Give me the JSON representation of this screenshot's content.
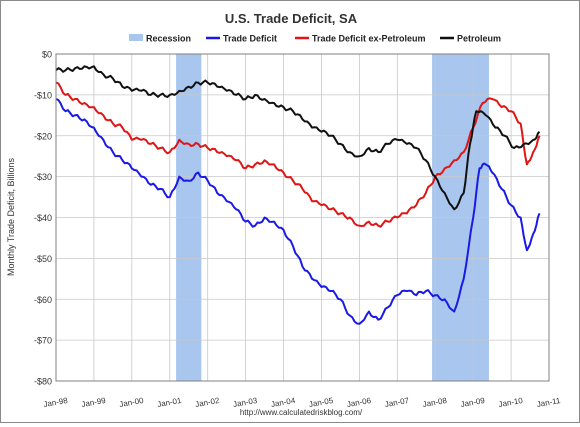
{
  "chart_data": {
    "type": "line",
    "title": "U.S. Trade Deficit, SA",
    "ylabel": "Monthly Trade Deficit, Billions",
    "xlabel": "",
    "source": "http://www.calculatedriskblog.com/",
    "ylim": [
      -80,
      0
    ],
    "xlim": [
      "1998-01",
      "2011-01"
    ],
    "grid": true,
    "legend_position": "top",
    "y_ticks": [
      {
        "value": 0,
        "label": "$0"
      },
      {
        "value": -10,
        "label": "-$10"
      },
      {
        "value": -20,
        "label": "-$20"
      },
      {
        "value": -30,
        "label": "-$30"
      },
      {
        "value": -40,
        "label": "-$40"
      },
      {
        "value": -50,
        "label": "-$50"
      },
      {
        "value": -60,
        "label": "-$60"
      },
      {
        "value": -70,
        "label": "-$70"
      },
      {
        "value": -80,
        "label": "-$80"
      }
    ],
    "x_ticks": [
      {
        "date": "1998-01",
        "label": "Jan-98"
      },
      {
        "date": "1999-01",
        "label": "Jan-99"
      },
      {
        "date": "2000-01",
        "label": "Jan-00"
      },
      {
        "date": "2001-01",
        "label": "Jan-01"
      },
      {
        "date": "2002-01",
        "label": "Jan-02"
      },
      {
        "date": "2003-01",
        "label": "Jan-03"
      },
      {
        "date": "2004-01",
        "label": "Jan-04"
      },
      {
        "date": "2005-01",
        "label": "Jan-05"
      },
      {
        "date": "2006-01",
        "label": "Jan-06"
      },
      {
        "date": "2007-01",
        "label": "Jan-07"
      },
      {
        "date": "2008-01",
        "label": "Jan-08"
      },
      {
        "date": "2009-01",
        "label": "Jan-09"
      },
      {
        "date": "2010-01",
        "label": "Jan-10"
      },
      {
        "date": "2011-01",
        "label": "Jan-11"
      }
    ],
    "recessions": [
      {
        "start": "2001-03",
        "end": "2001-11"
      },
      {
        "start": "2007-12",
        "end": "2009-06"
      }
    ],
    "recession_legend": {
      "name": "Recession",
      "color": "#a9c6ee"
    },
    "series": [
      {
        "name": "Trade Deficit",
        "color": "#1a1ae6",
        "points": [
          [
            "1998-01",
            -11
          ],
          [
            "1998-04",
            -14
          ],
          [
            "1998-07",
            -15
          ],
          [
            "1998-10",
            -16
          ],
          [
            "1999-01",
            -18
          ],
          [
            "1999-04",
            -21
          ],
          [
            "1999-07",
            -24
          ],
          [
            "1999-10",
            -26
          ],
          [
            "2000-01",
            -28
          ],
          [
            "2000-04",
            -30
          ],
          [
            "2000-07",
            -32
          ],
          [
            "2000-10",
            -33
          ],
          [
            "2001-01",
            -35
          ],
          [
            "2001-04",
            -30
          ],
          [
            "2001-07",
            -31
          ],
          [
            "2001-10",
            -29
          ],
          [
            "2002-01",
            -31
          ],
          [
            "2002-04",
            -34
          ],
          [
            "2002-07",
            -36
          ],
          [
            "2002-10",
            -38
          ],
          [
            "2003-01",
            -41
          ],
          [
            "2003-04",
            -42
          ],
          [
            "2003-07",
            -40
          ],
          [
            "2003-10",
            -41
          ],
          [
            "2004-01",
            -43
          ],
          [
            "2004-04",
            -47
          ],
          [
            "2004-07",
            -52
          ],
          [
            "2004-10",
            -55
          ],
          [
            "2005-01",
            -57
          ],
          [
            "2005-04",
            -58
          ],
          [
            "2005-07",
            -60
          ],
          [
            "2005-10",
            -64
          ],
          [
            "2006-01",
            -66
          ],
          [
            "2006-04",
            -63
          ],
          [
            "2006-07",
            -65
          ],
          [
            "2006-10",
            -62
          ],
          [
            "2007-01",
            -59
          ],
          [
            "2007-04",
            -58
          ],
          [
            "2007-07",
            -59
          ],
          [
            "2007-10",
            -58
          ],
          [
            "2008-01",
            -59
          ],
          [
            "2008-04",
            -60
          ],
          [
            "2008-07",
            -63
          ],
          [
            "2008-10",
            -55
          ],
          [
            "2009-01",
            -40
          ],
          [
            "2009-03",
            -28
          ],
          [
            "2009-05",
            -27
          ],
          [
            "2009-07",
            -29
          ],
          [
            "2009-10",
            -33
          ],
          [
            "2010-01",
            -37
          ],
          [
            "2010-04",
            -40
          ],
          [
            "2010-06",
            -48
          ],
          [
            "2010-08",
            -44
          ],
          [
            "2010-10",
            -39
          ]
        ]
      },
      {
        "name": "Trade Deficit ex-Petroleum",
        "color": "#e01515",
        "points": [
          [
            "1998-01",
            -7
          ],
          [
            "1998-04",
            -10
          ],
          [
            "1998-07",
            -11
          ],
          [
            "1998-10",
            -12
          ],
          [
            "1999-01",
            -13
          ],
          [
            "1999-04",
            -15
          ],
          [
            "1999-07",
            -17
          ],
          [
            "1999-10",
            -18
          ],
          [
            "2000-01",
            -21
          ],
          [
            "2000-04",
            -21
          ],
          [
            "2000-07",
            -22
          ],
          [
            "2000-10",
            -23
          ],
          [
            "2001-01",
            -24
          ],
          [
            "2001-04",
            -21
          ],
          [
            "2001-07",
            -22
          ],
          [
            "2001-10",
            -22
          ],
          [
            "2002-01",
            -23
          ],
          [
            "2002-04",
            -24
          ],
          [
            "2002-07",
            -25
          ],
          [
            "2002-10",
            -26
          ],
          [
            "2003-01",
            -28
          ],
          [
            "2003-04",
            -27
          ],
          [
            "2003-07",
            -26
          ],
          [
            "2003-10",
            -27
          ],
          [
            "2004-01",
            -29
          ],
          [
            "2004-04",
            -31
          ],
          [
            "2004-07",
            -33
          ],
          [
            "2004-10",
            -36
          ],
          [
            "2005-01",
            -37
          ],
          [
            "2005-04",
            -38
          ],
          [
            "2005-07",
            -39
          ],
          [
            "2005-10",
            -40
          ],
          [
            "2006-01",
            -42
          ],
          [
            "2006-04",
            -41
          ],
          [
            "2006-07",
            -42
          ],
          [
            "2006-10",
            -41
          ],
          [
            "2007-01",
            -40
          ],
          [
            "2007-04",
            -39
          ],
          [
            "2007-07",
            -37
          ],
          [
            "2007-10",
            -34
          ],
          [
            "2008-01",
            -30
          ],
          [
            "2008-04",
            -28
          ],
          [
            "2008-07",
            -26
          ],
          [
            "2008-10",
            -24
          ],
          [
            "2009-01",
            -18
          ],
          [
            "2009-04",
            -12
          ],
          [
            "2009-07",
            -11
          ],
          [
            "2009-10",
            -13
          ],
          [
            "2010-01",
            -14
          ],
          [
            "2010-04",
            -17
          ],
          [
            "2010-06",
            -27
          ],
          [
            "2010-08",
            -24
          ],
          [
            "2010-10",
            -20
          ]
        ]
      },
      {
        "name": "Petroleum",
        "color": "#111111",
        "points": [
          [
            "1998-01",
            -4
          ],
          [
            "1998-04",
            -4
          ],
          [
            "1998-07",
            -3.5
          ],
          [
            "1998-10",
            -3
          ],
          [
            "1999-01",
            -3
          ],
          [
            "1999-04",
            -5
          ],
          [
            "1999-07",
            -6
          ],
          [
            "1999-10",
            -8
          ],
          [
            "2000-01",
            -9
          ],
          [
            "2000-04",
            -9
          ],
          [
            "2000-07",
            -10
          ],
          [
            "2000-10",
            -10
          ],
          [
            "2001-01",
            -10
          ],
          [
            "2001-04",
            -9
          ],
          [
            "2001-07",
            -8
          ],
          [
            "2001-10",
            -7
          ],
          [
            "2002-01",
            -7
          ],
          [
            "2002-04",
            -8
          ],
          [
            "2002-07",
            -9
          ],
          [
            "2002-10",
            -10
          ],
          [
            "2003-01",
            -11
          ],
          [
            "2003-04",
            -10
          ],
          [
            "2003-07",
            -11
          ],
          [
            "2003-10",
            -12
          ],
          [
            "2004-01",
            -13
          ],
          [
            "2004-04",
            -14
          ],
          [
            "2004-07",
            -16
          ],
          [
            "2004-10",
            -18
          ],
          [
            "2005-01",
            -19
          ],
          [
            "2005-04",
            -20
          ],
          [
            "2005-07",
            -22
          ],
          [
            "2005-10",
            -24
          ],
          [
            "2006-01",
            -25
          ],
          [
            "2006-04",
            -23
          ],
          [
            "2006-07",
            -24
          ],
          [
            "2006-10",
            -22
          ],
          [
            "2007-01",
            -21
          ],
          [
            "2007-04",
            -22
          ],
          [
            "2007-07",
            -23
          ],
          [
            "2007-10",
            -26
          ],
          [
            "2008-01",
            -30
          ],
          [
            "2008-04",
            -34
          ],
          [
            "2008-07",
            -38
          ],
          [
            "2008-10",
            -34
          ],
          [
            "2008-12",
            -22
          ],
          [
            "2009-02",
            -14
          ],
          [
            "2009-05",
            -15
          ],
          [
            "2009-08",
            -18
          ],
          [
            "2009-11",
            -20
          ],
          [
            "2010-02",
            -23
          ],
          [
            "2010-05",
            -22
          ],
          [
            "2010-08",
            -21
          ],
          [
            "2010-10",
            -19
          ]
        ]
      }
    ]
  }
}
